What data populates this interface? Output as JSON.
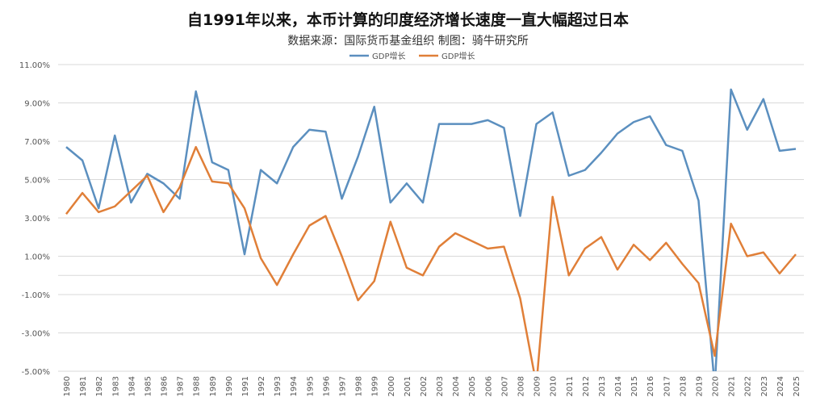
{
  "chart_data": {
    "type": "line",
    "title": "自1991年以来，本币计算的印度经济增长速度一直大幅超过日本",
    "subtitle": "数据来源：国际货币基金组织  制图：骑牛研究所",
    "xlabel": "",
    "ylabel": "",
    "ylim": [
      -5,
      11
    ],
    "yticks": [
      11,
      9,
      7,
      5,
      3,
      1,
      -1,
      -3,
      -5
    ],
    "ytick_labels": [
      "11.00%",
      "9.00%",
      "7.00%",
      "5.00%",
      "3.00%",
      "1.00%",
      "-1.00%",
      "-3.00%",
      "-5.00%"
    ],
    "grid": true,
    "legend_position": "top-center",
    "x": [
      "1980",
      "1981",
      "1982",
      "1983",
      "1984",
      "1985",
      "1986",
      "1987",
      "1988",
      "1989",
      "1990",
      "1991",
      "1992",
      "1993",
      "1994",
      "1995",
      "1996",
      "1997",
      "1998",
      "1999",
      "2000",
      "2001",
      "2002",
      "2003",
      "2004",
      "2005",
      "2006",
      "2007",
      "2008",
      "2009",
      "2010",
      "2011",
      "2012",
      "2013",
      "2014",
      "2015",
      "2016",
      "2017",
      "2018",
      "2019",
      "2020",
      "2021",
      "2022",
      "2023",
      "2024",
      "2025"
    ],
    "series": [
      {
        "name": "GDP增长",
        "color": "#5b8fbf",
        "values": [
          6.7,
          6.0,
          3.5,
          7.3,
          3.8,
          5.3,
          4.8,
          4.0,
          9.6,
          5.9,
          5.5,
          1.1,
          5.5,
          4.8,
          6.7,
          7.6,
          7.5,
          4.0,
          6.2,
          8.8,
          3.8,
          4.8,
          3.8,
          7.9,
          7.9,
          7.9,
          8.1,
          7.7,
          3.1,
          7.9,
          8.5,
          5.2,
          5.5,
          6.4,
          7.4,
          8.0,
          8.3,
          6.8,
          6.5,
          3.9,
          -5.8,
          9.7,
          7.6,
          9.2,
          6.5,
          6.6
        ]
      },
      {
        "name": "GDP增长",
        "color": "#e07f38",
        "values": [
          3.2,
          4.3,
          3.3,
          3.6,
          4.4,
          5.2,
          3.3,
          4.6,
          6.7,
          4.9,
          4.8,
          3.5,
          0.9,
          -0.5,
          1.1,
          2.6,
          3.1,
          1.0,
          -1.3,
          -0.3,
          2.8,
          0.4,
          0.0,
          1.5,
          2.2,
          1.8,
          1.4,
          1.5,
          -1.2,
          -5.7,
          4.1,
          0.0,
          1.4,
          2.0,
          0.3,
          1.6,
          0.8,
          1.7,
          0.6,
          -0.4,
          -4.2,
          2.7,
          1.0,
          1.2,
          0.1,
          1.1
        ]
      }
    ]
  }
}
